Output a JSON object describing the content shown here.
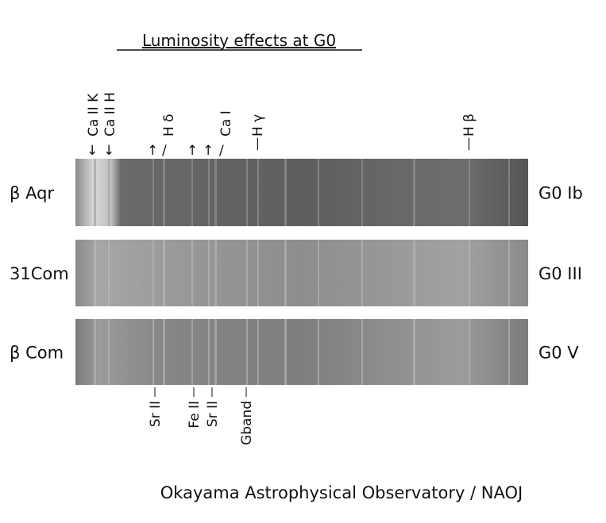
{
  "title": "Luminosity effects at G0",
  "stars": [
    {
      "name": "β Aqr",
      "class": "G0 Ib"
    },
    {
      "name": "31Com",
      "class": "G0 III"
    },
    {
      "name": "β Com",
      "class": "G0 V"
    }
  ],
  "top_lines": [
    "Ca II K",
    "Ca II H",
    "H δ",
    "Ca I",
    "H γ",
    "H β"
  ],
  "bottom_lines": [
    "Sr II",
    "Fe II",
    "Sr II",
    "Gband"
  ],
  "credit": "Okayama Astrophysical Observatory / NAOJ"
}
